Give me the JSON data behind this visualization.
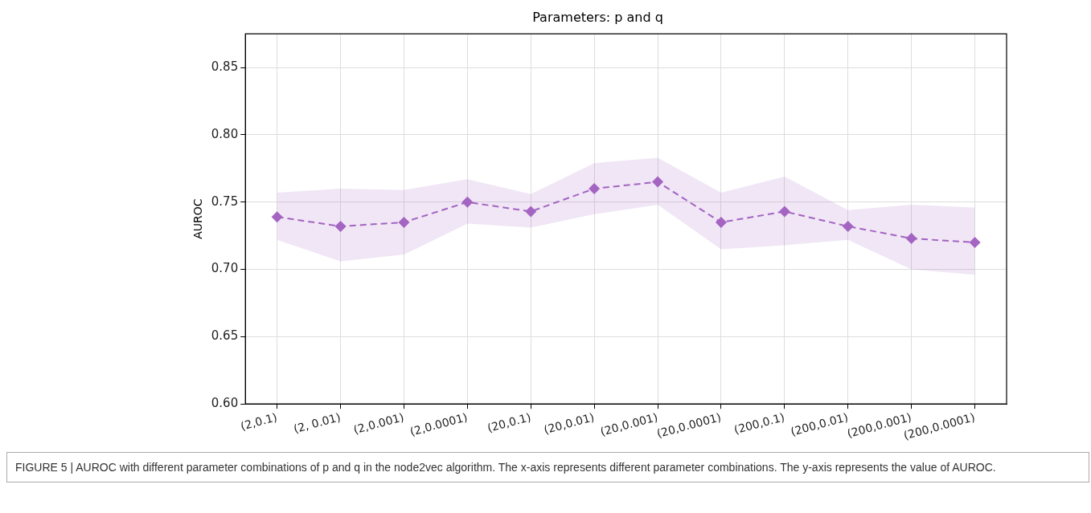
{
  "chart_data": {
    "type": "line",
    "title": "Parameters: p and q",
    "ylabel": "AUROC",
    "categories": [
      "(2,0.1)",
      "(2, 0.01)",
      "(2,0.001)",
      "(2,0.0001)",
      "(20,0.1)",
      "(20,0.01)",
      "(20,0.001)",
      "(20,0.0001)",
      "(200,0.1)",
      "(200,0.01)",
      "(200,0.001)",
      "(200,0.0001)"
    ],
    "series": [
      {
        "color": "#a364c2",
        "values": [
          0.739,
          0.732,
          0.735,
          0.75,
          0.743,
          0.76,
          0.765,
          0.735,
          0.743,
          0.732,
          0.723,
          0.72
        ],
        "lower": [
          0.722,
          0.706,
          0.711,
          0.734,
          0.731,
          0.741,
          0.748,
          0.715,
          0.718,
          0.722,
          0.7,
          0.696
        ],
        "upper": [
          0.757,
          0.76,
          0.759,
          0.767,
          0.756,
          0.779,
          0.783,
          0.757,
          0.769,
          0.744,
          0.748,
          0.746
        ]
      }
    ],
    "ylim": [
      0.6,
      0.875
    ],
    "yticks": [
      {
        "value": 0.6,
        "label": "0.60"
      },
      0.65,
      {
        "value": 0.7,
        "label": "0.70"
      },
      0.75,
      {
        "value": 0.8,
        "label": "0.80"
      },
      0.85
    ],
    "grid": true,
    "marker": "diamond",
    "line_style": "dashed",
    "annotations": [
      "FIGURE 5 | AUROC with different parameter combinations of p and q in the node2vec algorithm. The x-axis represents different parameter combinations. The y-axis represents the value of AUROC."
    ]
  }
}
